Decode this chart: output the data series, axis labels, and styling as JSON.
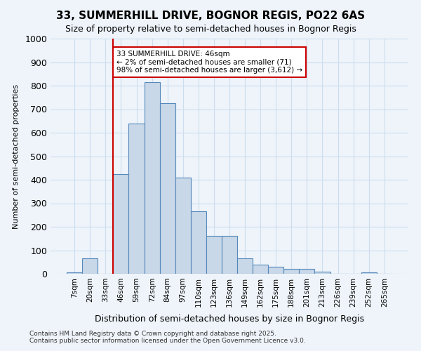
{
  "title1": "33, SUMMERHILL DRIVE, BOGNOR REGIS, PO22 6AS",
  "title2": "Size of property relative to semi-detached houses in Bognor Regis",
  "xlabel": "Distribution of semi-detached houses by size in Bognor Regis",
  "ylabel": "Number of semi-detached properties",
  "categories": [
    "7sqm",
    "20sqm",
    "33sqm",
    "46sqm",
    "59sqm",
    "72sqm",
    "84sqm",
    "97sqm",
    "110sqm",
    "123sqm",
    "136sqm",
    "149sqm",
    "162sqm",
    "175sqm",
    "188sqm",
    "201sqm",
    "213sqm",
    "226sqm",
    "239sqm",
    "252sqm",
    "265sqm"
  ],
  "values": [
    5,
    65,
    0,
    425,
    640,
    815,
    725,
    410,
    265,
    160,
    160,
    65,
    40,
    30,
    20,
    20,
    10,
    0,
    0,
    5,
    0
  ],
  "bar_color": "#c8d8e8",
  "bar_edge_color": "#5588bb",
  "grid_color": "#ccddee",
  "bg_color": "#eef4fa",
  "vline_x": 3,
  "vline_color": "#cc0000",
  "annotation_text": "33 SUMMERHILL DRIVE: 46sqm\n← 2% of semi-detached houses are smaller (71)\n98% of semi-detached houses are larger (3,612) →",
  "annotation_box_color": "#cc0000",
  "annotation_fill": "#ffffff",
  "footer1": "Contains HM Land Registry data © Crown copyright and database right 2025.",
  "footer2": "Contains public sector information licensed under the Open Government Licence v3.0.",
  "ylim": [
    0,
    1000
  ],
  "yticks": [
    0,
    100,
    200,
    300,
    400,
    500,
    600,
    700,
    800,
    900,
    1000
  ]
}
